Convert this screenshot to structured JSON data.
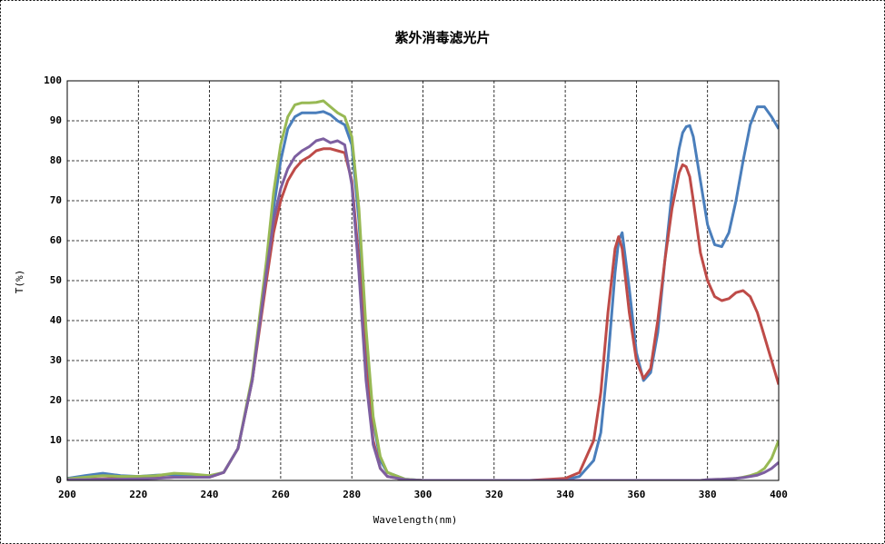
{
  "chart_data": {
    "type": "line",
    "title": "紫外消毒滤光片",
    "x_label": "Wavelength(nm)",
    "y_label": "T(%)",
    "x": [
      200,
      205,
      210,
      215,
      220,
      225,
      230,
      235,
      240,
      244,
      248,
      252,
      256,
      258,
      260,
      262,
      264,
      266,
      268,
      270,
      272,
      274,
      276,
      278,
      280,
      282,
      284,
      286,
      288,
      290,
      295,
      300,
      310,
      320,
      330,
      340,
      344,
      348,
      350,
      352,
      354,
      355,
      356,
      358,
      360,
      362,
      364,
      366,
      368,
      370,
      372,
      373,
      374,
      375,
      376,
      378,
      380,
      382,
      384,
      386,
      388,
      390,
      392,
      394,
      396,
      398,
      400
    ],
    "series": [
      {
        "color": "#4a7ebb",
        "values": [
          0.5,
          1.2,
          1.8,
          1.2,
          1,
          1.3,
          1.5,
          1.4,
          1,
          2,
          8,
          25,
          52,
          68,
          80,
          88,
          91,
          92,
          92,
          92,
          92.3,
          91.5,
          90,
          89,
          84,
          65,
          35,
          15,
          5,
          2,
          0.3,
          0,
          0,
          0,
          0,
          0.2,
          1,
          5,
          12,
          30,
          52,
          60,
          62,
          48,
          32,
          25,
          27,
          37,
          55,
          72,
          83,
          87,
          88.5,
          88.8,
          86,
          75,
          64,
          59,
          58.5,
          62,
          70,
          80,
          89,
          93.5,
          93.5,
          91,
          88
        ]
      },
      {
        "color": "#be4b48",
        "values": [
          0.2,
          0.3,
          0.4,
          0.5,
          0.5,
          0.6,
          0.8,
          0.8,
          0.8,
          2,
          8,
          25,
          50,
          62,
          70,
          75,
          78,
          80,
          81,
          82.5,
          83,
          83,
          82.5,
          82,
          75,
          55,
          28,
          10,
          3,
          1,
          0.2,
          0,
          0,
          0,
          0,
          0.5,
          2,
          10,
          22,
          42,
          58,
          61,
          58,
          42,
          30,
          25.5,
          28,
          40,
          55,
          68,
          77,
          79,
          78.5,
          76,
          70,
          57,
          50,
          46,
          45,
          45.5,
          47,
          47.5,
          46,
          42,
          36,
          30,
          24
        ]
      },
      {
        "color": "#98b954",
        "values": [
          0.4,
          0.8,
          1.2,
          1,
          1,
          1.2,
          1.8,
          1.6,
          1.2,
          2,
          8,
          26,
          55,
          72,
          84,
          91,
          94,
          94.5,
          94.5,
          94.6,
          95,
          93.5,
          92,
          91,
          86,
          68,
          38,
          16,
          6,
          2,
          0.3,
          0,
          0,
          0,
          0,
          0,
          0,
          0,
          0,
          0,
          0,
          0,
          0,
          0,
          0,
          0,
          0,
          0,
          0,
          0,
          0,
          0,
          0,
          0,
          0,
          0,
          0.2,
          0.25,
          0.3,
          0.4,
          0.5,
          0.8,
          1.2,
          1.8,
          3,
          5.5,
          10
        ]
      },
      {
        "color": "#7d5fa0",
        "values": [
          0.2,
          0.2,
          0.3,
          0.3,
          0.4,
          0.5,
          0.8,
          0.8,
          0.8,
          2,
          8,
          25,
          52,
          65,
          73,
          78,
          81,
          82.5,
          83.5,
          85,
          85.5,
          84.5,
          85,
          84,
          74,
          52,
          25,
          9,
          3,
          1,
          0.2,
          0,
          0,
          0,
          0,
          0,
          0,
          0,
          0,
          0,
          0,
          0,
          0,
          0,
          0,
          0,
          0,
          0,
          0,
          0,
          0,
          0,
          0,
          0,
          0,
          0,
          0.2,
          0.25,
          0.3,
          0.4,
          0.5,
          0.7,
          1,
          1.3,
          2,
          3,
          4.5
        ]
      }
    ],
    "xlim": [
      200,
      400
    ],
    "xticks": [
      200,
      220,
      240,
      260,
      280,
      300,
      320,
      340,
      360,
      380,
      400
    ],
    "ylim": [
      0,
      100
    ],
    "yticks": [
      0,
      10,
      20,
      30,
      40,
      50,
      60,
      70,
      80,
      90,
      100
    ],
    "grid": true
  }
}
